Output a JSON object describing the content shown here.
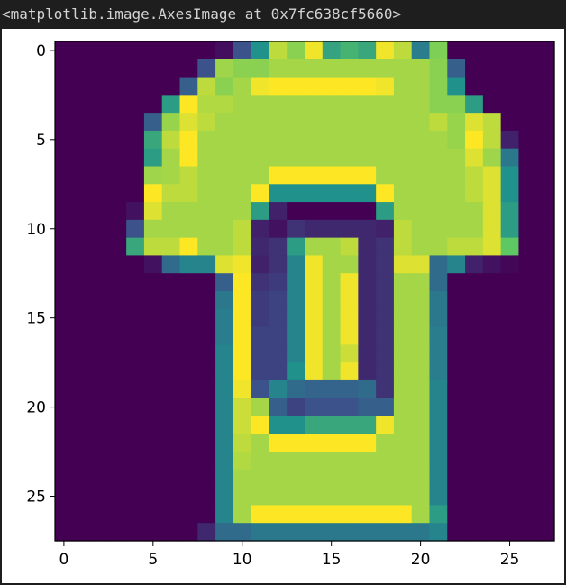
{
  "output": {
    "repr_text": "<matplotlib.image.AxesImage at 0x7fc638cf5660>"
  },
  "chart_data": {
    "type": "heatmap",
    "colormap": "viridis",
    "colormap_stops": [
      "#440154",
      "#3b528b",
      "#21918c",
      "#5ec962",
      "#fde725"
    ],
    "shape": [
      28,
      28
    ],
    "xlim": [
      -0.5,
      27.5
    ],
    "ylim": [
      27.5,
      -0.5
    ],
    "xticks": [
      0,
      5,
      10,
      15,
      20,
      25
    ],
    "yticks": [
      0,
      5,
      10,
      15,
      20,
      25
    ],
    "xtick_labels": [
      "0",
      "5",
      "10",
      "15",
      "20",
      "25"
    ],
    "ytick_labels": [
      "0",
      "5",
      "10",
      "15",
      "20",
      "25"
    ],
    "grid": false,
    "rows": [
      [
        0,
        0,
        0,
        0,
        0,
        0,
        0,
        0,
        0,
        0.04,
        0.25,
        0.5,
        0.9,
        0.82,
        0.98,
        0.58,
        0.65,
        0.6,
        0.98,
        0.9,
        0.42,
        0.8,
        0,
        0,
        0,
        0,
        0,
        0
      ],
      [
        0,
        0,
        0,
        0,
        0,
        0,
        0,
        0,
        0.25,
        0.85,
        0.82,
        0.82,
        0.86,
        0.86,
        0.86,
        0.86,
        0.86,
        0.86,
        0.86,
        0.86,
        0.86,
        0.82,
        0.3,
        0,
        0,
        0,
        0,
        0
      ],
      [
        0,
        0,
        0,
        0,
        0,
        0,
        0,
        0.3,
        0.9,
        0.82,
        0.86,
        0.98,
        1,
        1,
        1,
        1,
        1,
        1,
        0.98,
        0.86,
        0.86,
        0.82,
        0.5,
        0,
        0,
        0,
        0,
        0
      ],
      [
        0,
        0,
        0,
        0,
        0,
        0,
        0.55,
        1,
        0.88,
        0.88,
        0.86,
        0.86,
        0.86,
        0.86,
        0.86,
        0.86,
        0.86,
        0.86,
        0.86,
        0.86,
        0.86,
        0.82,
        0.82,
        0.55,
        0,
        0,
        0,
        0
      ],
      [
        0,
        0,
        0,
        0,
        0,
        0.3,
        0.84,
        0.95,
        0.9,
        0.86,
        0.86,
        0.86,
        0.86,
        0.86,
        0.86,
        0.86,
        0.86,
        0.86,
        0.86,
        0.86,
        0.86,
        0.9,
        0.84,
        0.95,
        0.9,
        0,
        0,
        0
      ],
      [
        0,
        0,
        0,
        0,
        0,
        0.6,
        0.9,
        1,
        0.86,
        0.86,
        0.86,
        0.86,
        0.86,
        0.86,
        0.86,
        0.86,
        0.86,
        0.86,
        0.86,
        0.86,
        0.86,
        0.86,
        0.84,
        1,
        0.9,
        0.1,
        0,
        0
      ],
      [
        0,
        0,
        0,
        0,
        0,
        0.55,
        0.86,
        1,
        0.86,
        0.86,
        0.86,
        0.86,
        0.86,
        0.86,
        0.86,
        0.86,
        0.86,
        0.86,
        0.86,
        0.86,
        0.86,
        0.86,
        0.86,
        0.95,
        0.85,
        0.4,
        0,
        0
      ],
      [
        0,
        0,
        0,
        0,
        0,
        0.85,
        0.86,
        0.9,
        0.86,
        0.86,
        0.86,
        0.86,
        1,
        1,
        1,
        1,
        1,
        1,
        0.86,
        0.86,
        0.86,
        0.86,
        0.86,
        0.9,
        0.95,
        0.5,
        0,
        0
      ],
      [
        0,
        0,
        0,
        0,
        0,
        1,
        0.9,
        0.9,
        0.86,
        0.86,
        0.86,
        1,
        0.5,
        0.5,
        0.5,
        0.5,
        0.5,
        0.5,
        1,
        0.86,
        0.86,
        0.86,
        0.86,
        0.9,
        0.95,
        0.5,
        0,
        0
      ],
      [
        0,
        0,
        0,
        0,
        0.05,
        0.95,
        0.86,
        0.86,
        0.86,
        0.86,
        0.86,
        0.55,
        0.1,
        0,
        0,
        0,
        0,
        0,
        0.55,
        0.86,
        0.86,
        0.86,
        0.86,
        0.86,
        0.95,
        0.55,
        0,
        0
      ],
      [
        0,
        0,
        0,
        0,
        0.25,
        0.86,
        0.86,
        0.86,
        0.86,
        0.86,
        0.9,
        0.1,
        0.05,
        0.15,
        0.12,
        0.12,
        0.12,
        0.12,
        0.1,
        0.9,
        0.86,
        0.86,
        0.86,
        0.86,
        0.95,
        0.55,
        0,
        0
      ],
      [
        0,
        0,
        0,
        0,
        0.6,
        0.9,
        0.9,
        1,
        0.86,
        0.86,
        0.9,
        0.12,
        0.15,
        0.55,
        0.86,
        0.86,
        0.9,
        0.12,
        0.15,
        0.9,
        0.86,
        0.86,
        0.9,
        0.9,
        0.95,
        0.75,
        0,
        0
      ],
      [
        0,
        0,
        0,
        0,
        0,
        0.05,
        0.35,
        0.45,
        0.45,
        0.95,
        0.98,
        0.1,
        0.15,
        0.45,
        0.98,
        0.86,
        0.86,
        0.12,
        0.15,
        0.95,
        0.95,
        0.35,
        0.45,
        0.1,
        0.05,
        0.02,
        0,
        0
      ],
      [
        0,
        0,
        0,
        0,
        0,
        0,
        0,
        0,
        0,
        0.3,
        1,
        0.15,
        0.18,
        0.45,
        0.98,
        0.86,
        0.98,
        0.12,
        0.15,
        0.86,
        0.86,
        0.35,
        0,
        0,
        0,
        0,
        0,
        0
      ],
      [
        0,
        0,
        0,
        0,
        0,
        0,
        0,
        0,
        0,
        0.4,
        1,
        0.18,
        0.2,
        0.45,
        0.98,
        0.86,
        0.98,
        0.12,
        0.15,
        0.86,
        0.86,
        0.4,
        0,
        0,
        0,
        0,
        0,
        0
      ],
      [
        0,
        0,
        0,
        0,
        0,
        0,
        0,
        0,
        0,
        0.42,
        1,
        0.18,
        0.2,
        0.45,
        0.98,
        0.86,
        0.98,
        0.12,
        0.15,
        0.86,
        0.86,
        0.4,
        0,
        0,
        0,
        0,
        0,
        0
      ],
      [
        0,
        0,
        0,
        0,
        0,
        0,
        0,
        0,
        0,
        0.42,
        1,
        0.2,
        0.2,
        0.45,
        0.98,
        0.86,
        0.98,
        0.12,
        0.15,
        0.86,
        0.86,
        0.42,
        0,
        0,
        0,
        0,
        0,
        0
      ],
      [
        0,
        0,
        0,
        0,
        0,
        0,
        0,
        0,
        0,
        0.45,
        1,
        0.2,
        0.2,
        0.45,
        0.98,
        0.86,
        0.92,
        0.12,
        0.15,
        0.86,
        0.86,
        0.42,
        0,
        0,
        0,
        0,
        0,
        0
      ],
      [
        0,
        0,
        0,
        0,
        0,
        0,
        0,
        0,
        0,
        0.45,
        1,
        0.2,
        0.2,
        0.5,
        0.98,
        0.86,
        0.98,
        0.12,
        0.15,
        0.86,
        0.86,
        0.42,
        0,
        0,
        0,
        0,
        0,
        0
      ],
      [
        0,
        0,
        0,
        0,
        0,
        0,
        0,
        0,
        0,
        0.45,
        0.98,
        0.25,
        0.45,
        0.35,
        0.32,
        0.32,
        0.32,
        0.35,
        0.15,
        0.86,
        0.86,
        0.45,
        0,
        0,
        0,
        0,
        0,
        0
      ],
      [
        0,
        0,
        0,
        0,
        0,
        0,
        0,
        0,
        0,
        0.45,
        0.92,
        0.86,
        0.3,
        0.2,
        0.25,
        0.25,
        0.25,
        0.3,
        0.3,
        0.86,
        0.86,
        0.45,
        0,
        0,
        0,
        0,
        0,
        0
      ],
      [
        0,
        0,
        0,
        0,
        0,
        0,
        0,
        0,
        0,
        0.45,
        0.92,
        1,
        0.5,
        0.5,
        0.6,
        0.6,
        0.6,
        0.6,
        0.98,
        0.86,
        0.86,
        0.45,
        0,
        0,
        0,
        0,
        0,
        0
      ],
      [
        0,
        0,
        0,
        0,
        0,
        0,
        0,
        0,
        0,
        0.45,
        0.9,
        0.86,
        1,
        1,
        1,
        1,
        1,
        1,
        0.86,
        0.86,
        0.86,
        0.45,
        0,
        0,
        0,
        0,
        0,
        0
      ],
      [
        0,
        0,
        0,
        0,
        0,
        0,
        0,
        0,
        0,
        0.45,
        0.88,
        0.86,
        0.86,
        0.86,
        0.86,
        0.86,
        0.86,
        0.86,
        0.86,
        0.86,
        0.86,
        0.45,
        0,
        0,
        0,
        0,
        0,
        0
      ],
      [
        0,
        0,
        0,
        0,
        0,
        0,
        0,
        0,
        0,
        0.45,
        0.86,
        0.86,
        0.86,
        0.86,
        0.86,
        0.86,
        0.86,
        0.86,
        0.86,
        0.86,
        0.86,
        0.45,
        0,
        0,
        0,
        0,
        0,
        0
      ],
      [
        0,
        0,
        0,
        0,
        0,
        0,
        0,
        0,
        0,
        0.45,
        0.86,
        0.86,
        0.86,
        0.86,
        0.86,
        0.86,
        0.86,
        0.86,
        0.86,
        0.86,
        0.86,
        0.45,
        0,
        0,
        0,
        0,
        0,
        0
      ],
      [
        0,
        0,
        0,
        0,
        0,
        0,
        0,
        0,
        0,
        0.45,
        0.86,
        1,
        1,
        1,
        1,
        1,
        1,
        1,
        1,
        1,
        0.86,
        0.55,
        0,
        0,
        0,
        0,
        0,
        0
      ],
      [
        0,
        0,
        0,
        0,
        0,
        0,
        0,
        0,
        0.12,
        0.35,
        0.35,
        0.4,
        0.4,
        0.4,
        0.4,
        0.4,
        0.4,
        0.4,
        0.4,
        0.4,
        0.4,
        0.45,
        0,
        0,
        0,
        0,
        0,
        0
      ]
    ]
  }
}
